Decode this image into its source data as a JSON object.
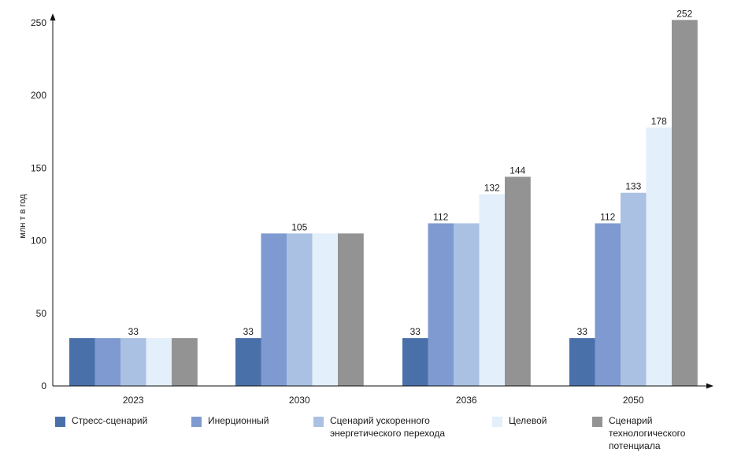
{
  "chart_data": {
    "type": "bar",
    "ylabel": "млн т в год",
    "xlabel": "",
    "title": "",
    "ylim": [
      0,
      250
    ],
    "yticks": [
      0,
      50,
      100,
      150,
      200,
      250
    ],
    "categories": [
      "2023",
      "2030",
      "2036",
      "2050"
    ],
    "series": [
      {
        "name": "Стресс-сценарий",
        "color": "#4a70aa",
        "values": [
          33,
          33,
          33,
          33
        ]
      },
      {
        "name": "Инерционный",
        "color": "#7f9ad0",
        "values": [
          33,
          105,
          112,
          112
        ]
      },
      {
        "name": "Сценарий ускоренного\nэнергетического перехода",
        "color": "#abc1e3",
        "values": [
          33,
          105,
          112,
          133
        ]
      },
      {
        "name": "Целевой",
        "color": "#e3effb",
        "values": [
          33,
          105,
          132,
          178
        ]
      },
      {
        "name": "Сценарий\nтехнологического\nпотенциала",
        "color": "#939393",
        "values": [
          33,
          105,
          144,
          252
        ]
      }
    ],
    "data_labels": [
      {
        "category": "2023",
        "series": 2,
        "text": "33"
      },
      {
        "category": "2030",
        "series": 0,
        "text": "33"
      },
      {
        "category": "2030",
        "series": 2,
        "text": "105"
      },
      {
        "category": "2036",
        "series": 0,
        "text": "33"
      },
      {
        "category": "2036",
        "series": 1,
        "text": "112"
      },
      {
        "category": "2036",
        "series": 3,
        "text": "132"
      },
      {
        "category": "2036",
        "series": 4,
        "text": "144"
      },
      {
        "category": "2050",
        "series": 0,
        "text": "33"
      },
      {
        "category": "2050",
        "series": 1,
        "text": "112"
      },
      {
        "category": "2050",
        "series": 2,
        "text": "133"
      },
      {
        "category": "2050",
        "series": 3,
        "text": "178"
      },
      {
        "category": "2050",
        "series": 4,
        "text": "252"
      }
    ],
    "grid": false,
    "legend_position": "bottom"
  }
}
